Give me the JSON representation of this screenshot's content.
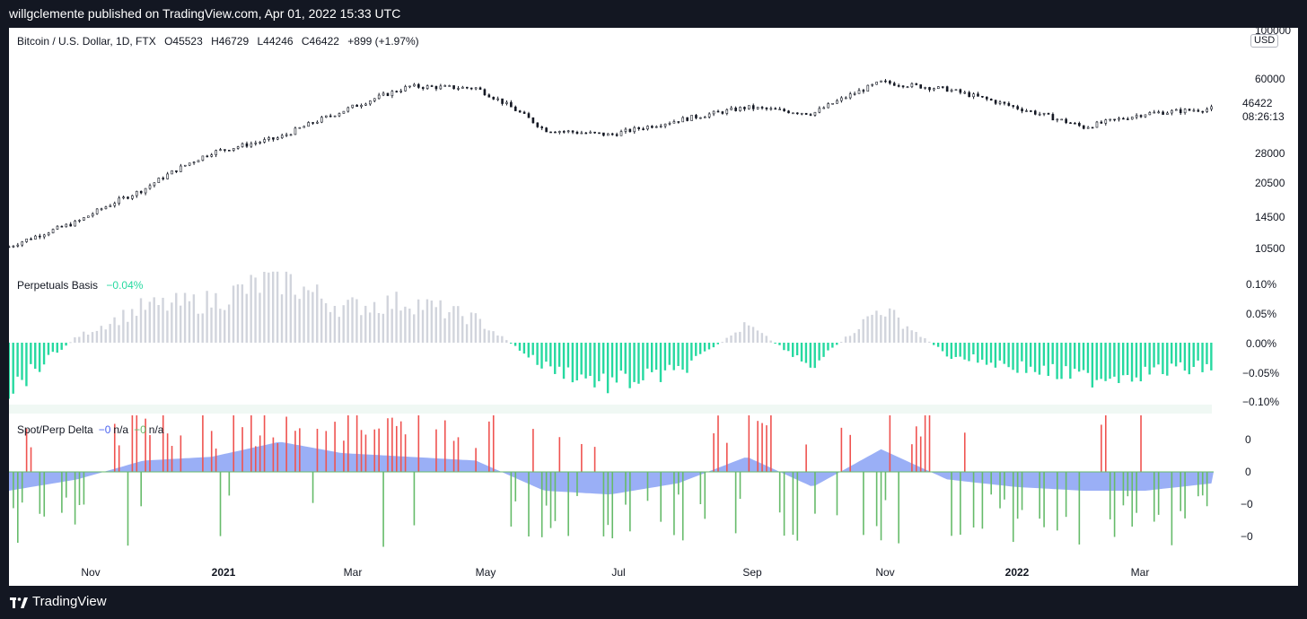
{
  "header": {
    "text": "willgclemente published on TradingView.com, Apr 01, 2022 15:33 UTC"
  },
  "footer": {
    "brand": "TradingView"
  },
  "price_pane": {
    "legend": {
      "symbol": "Bitcoin / U.S. Dollar, 1D, FTX",
      "open": "O45523",
      "high": "H46729",
      "low": "L44246",
      "close": "C46422",
      "change": "+899 (+1.97%)"
    },
    "currency": "USD",
    "axis_ticks": [
      "100000",
      "60000",
      "28000",
      "20500",
      "14500",
      "10500"
    ],
    "last_price": "46422",
    "countdown": "08:26:13"
  },
  "basis_pane": {
    "title": "Perpetuals Basis",
    "value": "−0.04%",
    "axis_ticks": [
      "0.10%",
      "0.05%",
      "0.00%",
      "−0.05%",
      "−0.10%"
    ]
  },
  "delta_pane": {
    "title": "Spot/Perp Delta",
    "v1": "−0",
    "v1_na": "n/a",
    "v2": "−0",
    "v2_na": "n/a",
    "axis_ticks": [
      "0",
      "0",
      "−0",
      "−0"
    ]
  },
  "time_axis": [
    "Nov",
    "2021",
    "Mar",
    "May",
    "Jul",
    "Sep",
    "Nov",
    "2022",
    "Mar"
  ],
  "colors": {
    "candle": "#131722",
    "basis_positive": "#d1d4dc",
    "basis_negative": "#26d9a0",
    "delta_red": "#ef5350",
    "delta_green": "#66bb6a",
    "delta_area": "#8fa6f5"
  },
  "chart_data": [
    {
      "type": "candlestick",
      "title": "Bitcoin / U.S. Dollar, 1D, FTX",
      "scale": "log",
      "ylim": [
        10000,
        100000
      ],
      "x": [
        "2020-10-01",
        "2020-11-01",
        "2020-12-01",
        "2021-01-01",
        "2021-02-01",
        "2021-03-01",
        "2021-04-01",
        "2021-05-01",
        "2021-06-01",
        "2021-07-01",
        "2021-08-01",
        "2021-09-01",
        "2021-10-01",
        "2021-11-01",
        "2021-12-01",
        "2022-01-01",
        "2022-02-01",
        "2022-03-01",
        "2022-04-01"
      ],
      "close": [
        10600,
        13800,
        19500,
        29000,
        34000,
        45000,
        58800,
        57800,
        37000,
        35000,
        41000,
        47000,
        44000,
        61500,
        57000,
        47000,
        38000,
        44000,
        46422
      ]
    },
    {
      "type": "bar",
      "title": "Perpetuals Basis",
      "ylim": [
        -0.11,
        0.11
      ],
      "unit": "%",
      "x": [
        "2020-10-01",
        "2020-11-01",
        "2020-12-01",
        "2021-01-01",
        "2021-02-01",
        "2021-03-01",
        "2021-04-01",
        "2021-05-01",
        "2021-06-01",
        "2021-07-01",
        "2021-08-01",
        "2021-09-01",
        "2021-10-01",
        "2021-11-01",
        "2021-12-01",
        "2022-01-01",
        "2022-02-01",
        "2022-03-01",
        "2022-04-01"
      ],
      "values": [
        -0.08,
        0.01,
        0.06,
        0.07,
        0.11,
        0.06,
        0.07,
        0.04,
        -0.04,
        -0.07,
        -0.05,
        0.03,
        -0.04,
        0.06,
        -0.02,
        -0.04,
        -0.06,
        -0.05,
        -0.04
      ]
    },
    {
      "type": "bar",
      "title": "Spot/Perp Delta",
      "x": [
        "2020-10-01",
        "2020-11-01",
        "2020-12-01",
        "2021-01-01",
        "2021-02-01",
        "2021-03-01",
        "2021-04-01",
        "2021-05-01",
        "2021-06-01",
        "2021-07-01",
        "2021-08-01",
        "2021-09-01",
        "2021-10-01",
        "2021-11-01",
        "2021-12-01",
        "2022-01-01",
        "2022-02-01",
        "2022-03-01",
        "2022-04-01"
      ],
      "values": [
        -0.5,
        -0.2,
        0.3,
        0.4,
        0.8,
        0.5,
        0.4,
        0.3,
        -0.5,
        -0.6,
        -0.3,
        0.4,
        -0.4,
        0.6,
        -0.2,
        -0.4,
        -0.5,
        -0.5,
        -0.3
      ]
    }
  ]
}
